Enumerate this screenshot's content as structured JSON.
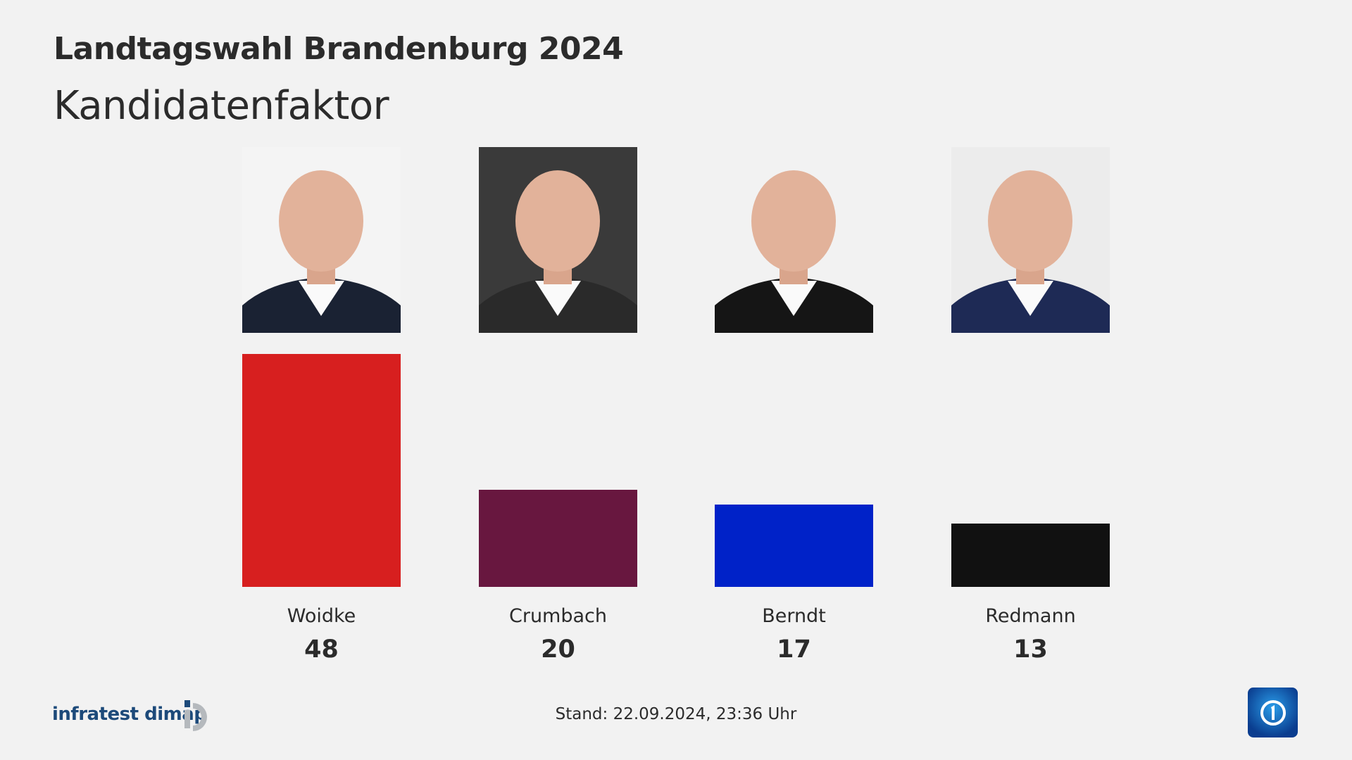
{
  "header": {
    "title": "Landtagswahl Brandenburg 2024",
    "subtitle": "Kandidatenfaktor"
  },
  "chart_data": {
    "type": "bar",
    "title": "Landtagswahl Brandenburg 2024",
    "subtitle": "Kandidatenfaktor",
    "categories": [
      "Woidke",
      "Crumbach",
      "Berndt",
      "Redmann"
    ],
    "values": [
      48,
      20,
      17,
      13
    ],
    "colors": [
      "#d71f1f",
      "#68173f",
      "#0022c8",
      "#111111"
    ],
    "ylim": [
      0,
      48
    ],
    "grid": false
  },
  "photos": [
    {
      "bg": "#f4f4f4",
      "suit": "#1a2233"
    },
    {
      "bg": "#3a3a3a",
      "suit": "#2a2a2a"
    },
    {
      "bg": "#f2f2f2",
      "suit": "#151515"
    },
    {
      "bg": "#ececec",
      "suit": "#1e2a55"
    }
  ],
  "footer": {
    "source": "infratest dimap",
    "stand": "Stand:  22.09.2024, 23:36 Uhr",
    "broadcaster_logo": "ard-tagesschau-logo"
  }
}
